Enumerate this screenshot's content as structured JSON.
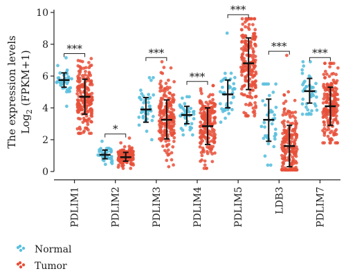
{
  "chart_data": {
    "type": "scatter",
    "subtype": "jitter-strip-with-mean-sd",
    "ylabel_line1": "The expression levels",
    "ylabel_line2_base": "Log",
    "ylabel_line2_sub": "2",
    "ylabel_line2_rest": " (FPKM+1)",
    "ylim": [
      0,
      10
    ],
    "yticks": [
      "0",
      "2",
      "4",
      "6",
      "8",
      "10"
    ],
    "categories": [
      "PDLIM1",
      "PDLIM2",
      "PDLIM3",
      "PDLIM4",
      "PDLIM5",
      "LDB3",
      "PDLIM7"
    ],
    "significance": [
      "***",
      "*",
      "***",
      "***",
      "***",
      "***",
      "***"
    ],
    "series": [
      {
        "name": "Normal",
        "color": "#5bc0de",
        "mean": [
          5.75,
          1.05,
          3.9,
          3.55,
          4.85,
          3.25,
          5.05
        ],
        "sd_low": [
          5.3,
          0.8,
          3.1,
          3.0,
          4.0,
          1.9,
          4.3
        ],
        "sd_high": [
          6.2,
          1.35,
          4.65,
          4.1,
          5.75,
          4.55,
          5.85
        ],
        "min": [
          4.1,
          0.45,
          2.0,
          2.3,
          3.1,
          0.4,
          3.6
        ],
        "max": [
          7.15,
          1.9,
          5.9,
          4.7,
          8.7,
          5.5,
          6.9
        ],
        "n": 40
      },
      {
        "name": "Tumor",
        "color": "#e8503a",
        "mean": [
          4.7,
          0.9,
          3.25,
          2.85,
          6.8,
          1.6,
          4.1
        ],
        "sd_low": [
          3.6,
          0.65,
          2.05,
          1.7,
          5.15,
          0.3,
          2.9
        ],
        "sd_high": [
          5.8,
          1.2,
          4.5,
          4.0,
          8.4,
          2.9,
          5.3
        ],
        "min": [
          2.4,
          0.2,
          0.3,
          0.2,
          3.5,
          0.1,
          1.8
        ],
        "max": [
          7.1,
          2.1,
          6.9,
          5.4,
          9.6,
          7.3,
          6.8
        ],
        "n": 190
      }
    ],
    "legend_position": "bottom-left"
  }
}
